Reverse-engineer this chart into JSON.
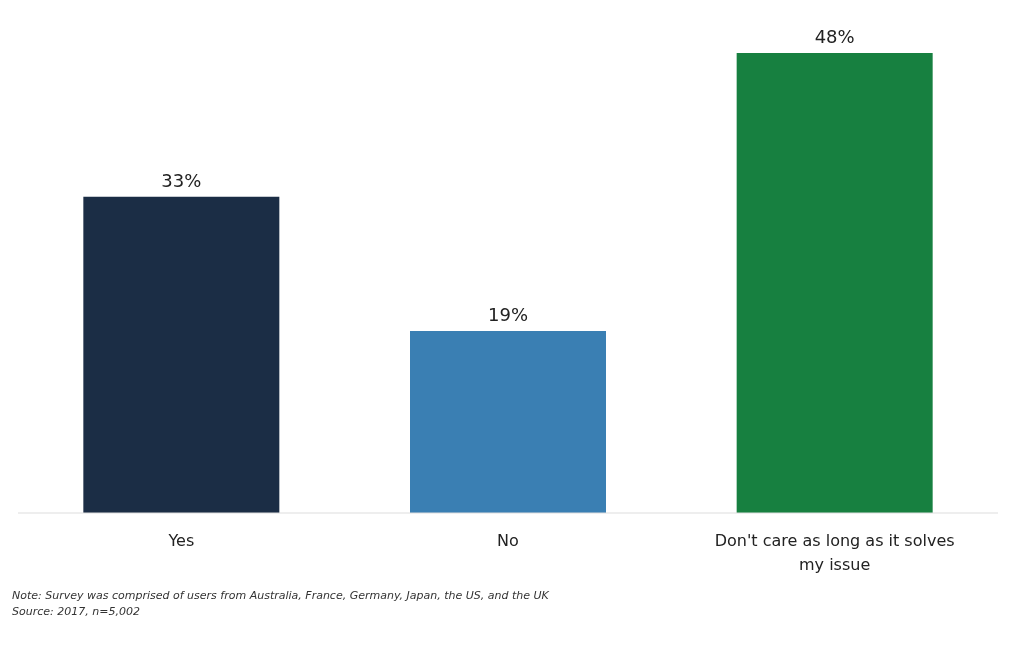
{
  "chart_data": {
    "type": "bar",
    "categories": [
      "Yes",
      "No",
      "Don't care as long as it solves my issue"
    ],
    "values": [
      33,
      19,
      48
    ],
    "value_labels": [
      "33%",
      "19%",
      "48%"
    ],
    "colors": [
      "#1b2d45",
      "#3a7fb3",
      "#178040"
    ],
    "annotations": [
      "Note: Survey was comprised of users from Australia, France, Germany, Japan, the US, and the UK",
      "Source: 2017, n=5,002"
    ]
  }
}
